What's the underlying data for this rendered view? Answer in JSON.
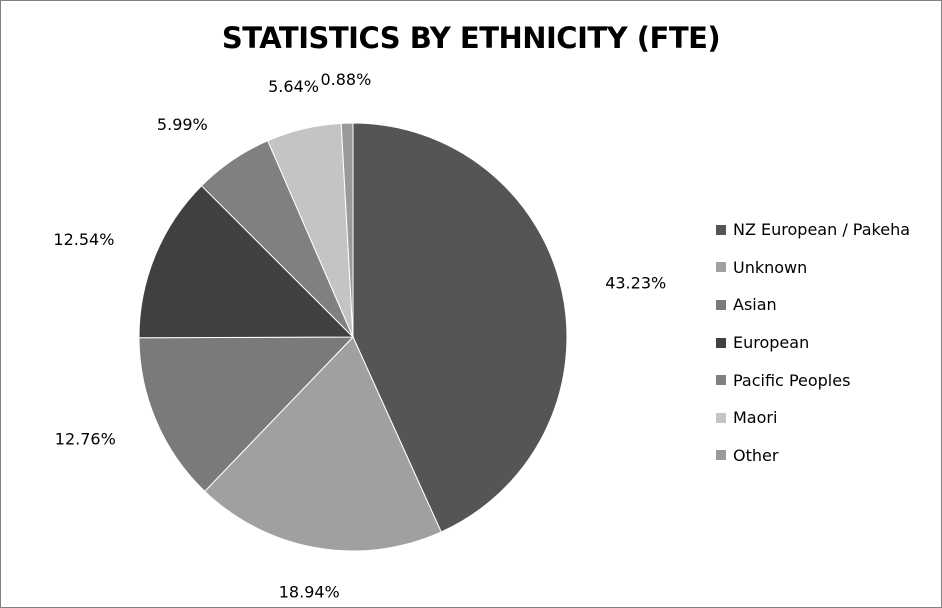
{
  "chart_data": {
    "type": "pie",
    "title": "STATISTICS BY ETHNICITY (FTE)",
    "legend_position": "right",
    "slices": [
      {
        "label": "NZ European / Pakeha",
        "value": 43.23,
        "data_label": "43.23%",
        "color": "#555555"
      },
      {
        "label": "Unknown",
        "value": 18.94,
        "data_label": "18.94%",
        "color": "#a0a0a0"
      },
      {
        "label": "Asian",
        "value": 12.76,
        "data_label": "12.76%",
        "color": "#7a7a7a"
      },
      {
        "label": "European",
        "value": 12.54,
        "data_label": "12.54%",
        "color": "#404040"
      },
      {
        "label": "Pacific Peoples",
        "value": 5.99,
        "data_label": "5.99%",
        "color": "#808080"
      },
      {
        "label": "Maori",
        "value": 5.64,
        "data_label": "5.64%",
        "color": "#c4c4c4"
      },
      {
        "label": "Other",
        "value": 0.88,
        "data_label": "0.88%",
        "color": "#9a9a9a"
      }
    ]
  }
}
